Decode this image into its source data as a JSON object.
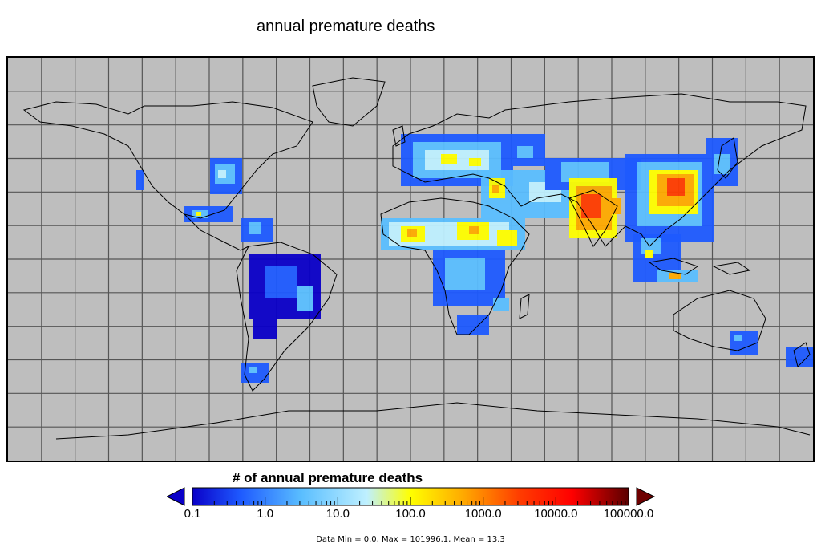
{
  "title": "annual premature deaths",
  "colorbar": {
    "title": "# of annual premature deaths",
    "ticks": [
      "0.1",
      "1.0",
      "10.0",
      "100.0",
      "1000.0",
      "10000.0",
      "100000.0"
    ],
    "colors": [
      "#0a00c8",
      "#1e5aff",
      "#5abeff",
      "#bff0ff",
      "#ffff00",
      "#ffaa00",
      "#ff3c00",
      "#ff0000",
      "#a00000",
      "#5a0000"
    ],
    "under_color": "#0a00c8",
    "over_color": "#6e0000",
    "scale": "log"
  },
  "stats": "Data Min = 0.0, Max = 101996.1, Mean = 13.3",
  "map": {
    "projection": "equirectangular",
    "background_color": "#bebebe",
    "grid": true,
    "grid_color": "#555555"
  }
}
